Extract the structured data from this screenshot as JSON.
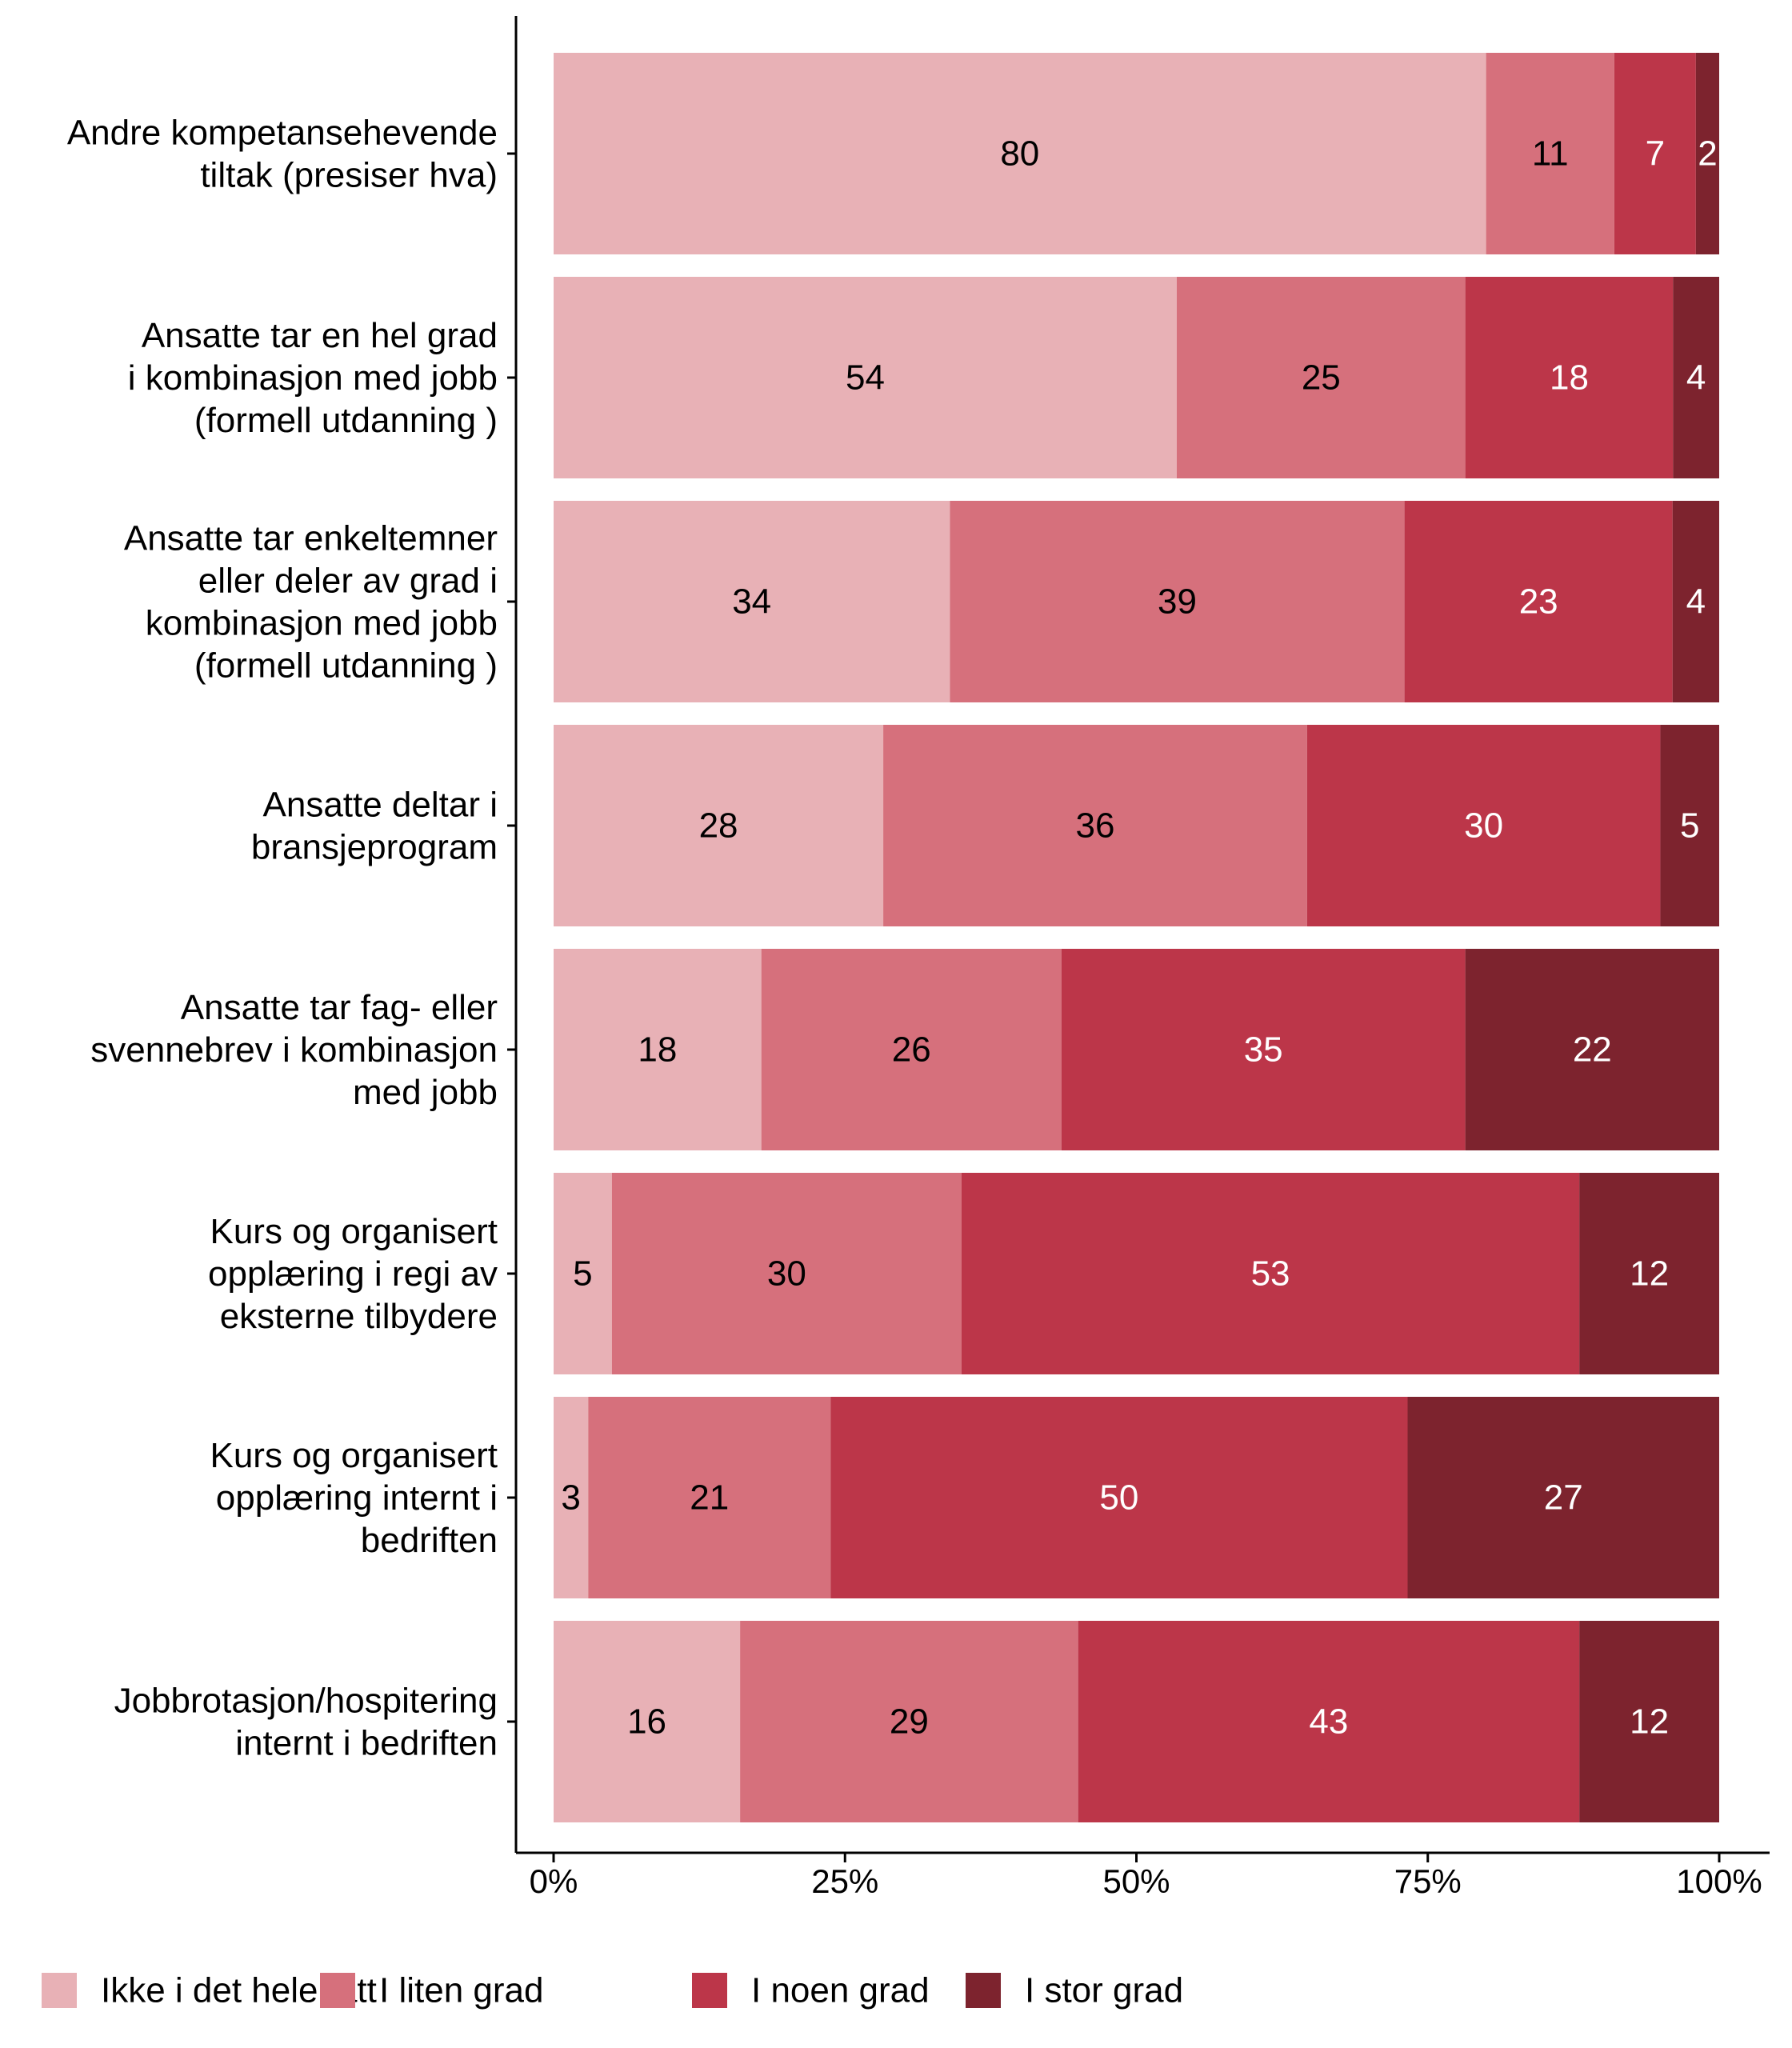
{
  "chart_data": {
    "type": "bar",
    "orientation": "horizontal",
    "stacked": "percent",
    "categories": [
      [
        "Andre kompetansehevende",
        "tiltak (presiser hva)"
      ],
      [
        "Ansatte tar en hel grad",
        "i kombinasjon med jobb",
        "(formell utdanning )"
      ],
      [
        "Ansatte tar enkeltemner",
        "eller deler av grad i",
        "kombinasjon med jobb",
        "(formell utdanning )"
      ],
      [
        "Ansatte deltar i",
        "bransjeprogram"
      ],
      [
        "Ansatte tar fag- eller",
        "svennebrev i kombinasjon",
        "med jobb"
      ],
      [
        "Kurs og organisert",
        "opplæring i regi av",
        "eksterne tilbydere"
      ],
      [
        "Kurs og organisert",
        "opplæring internt i",
        "bedriften"
      ],
      [
        "Jobbrotasjon/hospitering",
        "internt i bedriften"
      ]
    ],
    "series": [
      {
        "name": "Ikke i det hele tatt",
        "color": "#e8b1b6",
        "label_color": "#000000",
        "values": [
          80,
          54,
          34,
          28,
          18,
          5,
          3,
          16
        ]
      },
      {
        "name": "I liten grad",
        "color": "#d6707c",
        "label_color": "#000000",
        "values": [
          11,
          25,
          39,
          36,
          26,
          30,
          21,
          29
        ]
      },
      {
        "name": "I noen grad",
        "color": "#bc3649",
        "label_color": "#ffffff",
        "values": [
          7,
          18,
          23,
          30,
          35,
          53,
          50,
          43
        ]
      },
      {
        "name": "I stor grad",
        "color": "#7d232e",
        "label_color": "#ffffff",
        "values": [
          2,
          4,
          4,
          5,
          22,
          12,
          27,
          12
        ]
      }
    ],
    "x_ticks": [
      "0%",
      "25%",
      "50%",
      "75%",
      "100%"
    ],
    "xlim": [
      0,
      100
    ],
    "xlabel": "",
    "ylabel": "",
    "grid": false,
    "legend": {
      "position": "bottom"
    }
  }
}
